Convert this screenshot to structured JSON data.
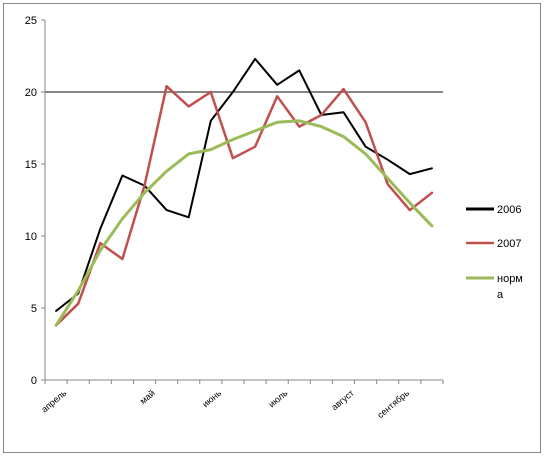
{
  "chart_data": {
    "type": "line",
    "title": "",
    "xlabel": "",
    "ylabel": "",
    "ylim": [
      0,
      25
    ],
    "y_ticks": [
      0,
      5,
      10,
      15,
      20,
      25
    ],
    "x_tick_labels": [
      "апрель",
      "май",
      "июнь",
      "июль",
      "август",
      "сентябрь"
    ],
    "grid": "major horizontal lines at 20",
    "legend_position": "right",
    "series": [
      {
        "name": "2006",
        "color": "#000000",
        "values": [
          4.8,
          6.0,
          10.5,
          14.2,
          13.5,
          11.8,
          11.3,
          18.0,
          20.0,
          22.3,
          20.5,
          21.5,
          18.4,
          18.6,
          16.2,
          15.3,
          14.3,
          14.7
        ]
      },
      {
        "name": "2007",
        "color": "#c0504d",
        "values": [
          3.8,
          5.3,
          9.5,
          8.4,
          13.5,
          20.4,
          19.0,
          20.0,
          15.4,
          16.2,
          19.7,
          17.6,
          18.4,
          20.2,
          17.9,
          13.6,
          11.8,
          13.0
        ]
      },
      {
        "name": "норм\nа",
        "color": "#9bbb59",
        "values": [
          3.8,
          6.2,
          9.0,
          11.2,
          13.0,
          14.5,
          15.7,
          16.0,
          16.7,
          17.3,
          17.9,
          18.0,
          17.6,
          16.9,
          15.7,
          14.0,
          12.3,
          10.7
        ]
      }
    ]
  },
  "legend": {
    "items": [
      {
        "label": "2006",
        "color": "#000000"
      },
      {
        "label": "2007",
        "color": "#c0504d"
      },
      {
        "label_line1": "норм",
        "label_line2": "а",
        "color": "#9bbb59"
      }
    ]
  }
}
